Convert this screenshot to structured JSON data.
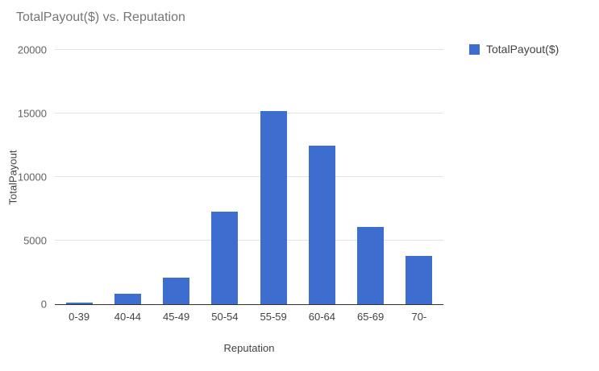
{
  "chart": {
    "title": "TotalPayout($) vs. Reputation",
    "legend_label": "TotalPayout($)",
    "xlabel": "Reputation",
    "ylabel": "TotalPayout",
    "colors": {
      "series": "#3d6dce",
      "title_text": "#757575",
      "tick_text": "#616161",
      "gridline": "#e3e3e3",
      "axis_line": "#333333"
    }
  },
  "chart_data": {
    "type": "bar",
    "title": "TotalPayout($) vs. Reputation",
    "categories": [
      "0-39",
      "40-44",
      "45-49",
      "50-54",
      "55-59",
      "60-64",
      "65-69",
      "70-"
    ],
    "series": [
      {
        "name": "TotalPayout($)",
        "values": [
          150,
          800,
          2100,
          7300,
          15200,
          12500,
          6100,
          3800
        ]
      }
    ],
    "xlabel": "Reputation",
    "ylabel": "TotalPayout",
    "ylim": [
      0,
      20000
    ],
    "yticks": [
      0,
      5000,
      10000,
      15000,
      20000
    ],
    "grid": true,
    "legend_position": "right-top"
  }
}
